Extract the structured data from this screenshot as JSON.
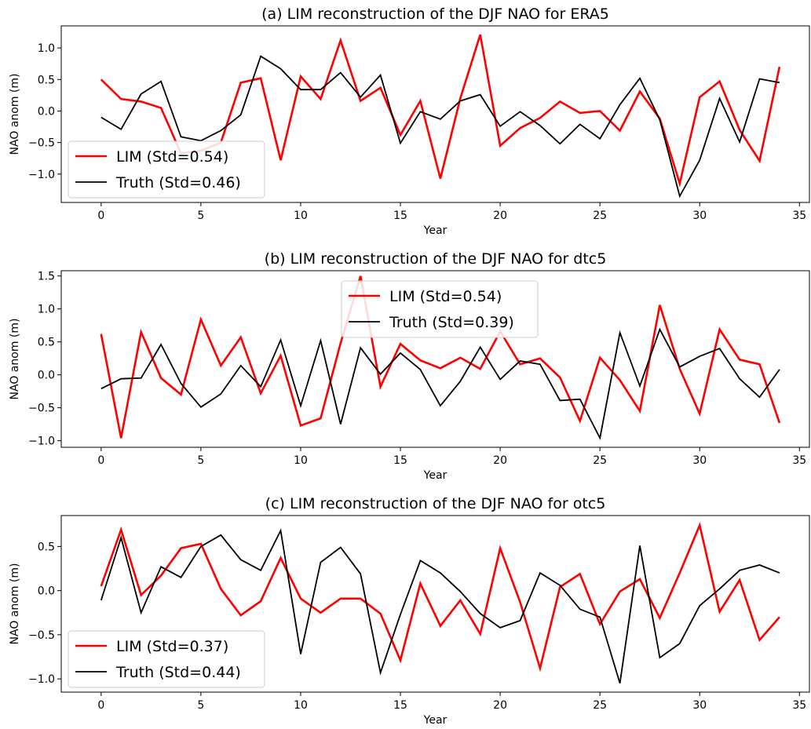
{
  "chart_data": [
    {
      "type": "line",
      "title": "(a) LIM reconstruction of the DJF NAO for ERA5",
      "xlabel": "Year",
      "ylabel": "NAO anom (m)",
      "xlim": [
        -2,
        35.5
      ],
      "ylim": [
        -1.45,
        1.35
      ],
      "xticks": [
        0,
        5,
        10,
        15,
        20,
        25,
        30,
        35
      ],
      "yticks": [
        -1.0,
        -0.5,
        0.0,
        0.5,
        1.0
      ],
      "ytick_labels": [
        "−1.0",
        "−0.5",
        "0.0",
        "0.5",
        "1.0"
      ],
      "legend_position": "lower-left",
      "x": [
        0,
        1,
        2,
        3,
        4,
        5,
        6,
        7,
        8,
        9,
        10,
        11,
        12,
        13,
        14,
        15,
        16,
        17,
        18,
        19,
        20,
        21,
        22,
        23,
        24,
        25,
        26,
        27,
        28,
        29,
        30,
        31,
        32,
        33,
        34
      ],
      "series": [
        {
          "name": "LIM (Std=0.54)",
          "color": "#ff0000",
          "width": 2.6,
          "values": [
            0.5,
            0.19,
            0.15,
            0.05,
            -0.67,
            -0.63,
            -0.5,
            0.45,
            0.52,
            -0.78,
            0.55,
            0.19,
            1.12,
            0.16,
            0.37,
            -0.38,
            0.16,
            -1.07,
            0.2,
            1.21,
            -0.55,
            -0.27,
            -0.11,
            0.15,
            -0.03,
            0.0,
            -0.31,
            0.31,
            -0.12,
            -1.15,
            0.22,
            0.47,
            -0.3,
            -0.79,
            0.7
          ]
        },
        {
          "name": "Truth (Std=0.46)",
          "color": "#000000",
          "width": 1.8,
          "values": [
            -0.1,
            -0.29,
            0.27,
            0.47,
            -0.41,
            -0.47,
            -0.31,
            -0.06,
            0.87,
            0.67,
            0.34,
            0.34,
            0.61,
            0.22,
            0.57,
            -0.51,
            -0.01,
            -0.13,
            0.16,
            0.26,
            -0.24,
            -0.01,
            -0.23,
            -0.52,
            -0.21,
            -0.44,
            0.1,
            0.52,
            -0.14,
            -1.35,
            -0.78,
            0.2,
            -0.49,
            0.51,
            0.45
          ]
        }
      ]
    },
    {
      "type": "line",
      "title": "(b) LIM reconstruction of the DJF NAO for dtc5",
      "xlabel": "Year",
      "ylabel": "NAO anom (m)",
      "xlim": [
        -2,
        35.5
      ],
      "ylim": [
        -1.1,
        1.58
      ],
      "xticks": [
        0,
        5,
        10,
        15,
        20,
        25,
        30,
        35
      ],
      "yticks": [
        -1.0,
        -0.5,
        0.0,
        0.5,
        1.0,
        1.5
      ],
      "ytick_labels": [
        "−1.0",
        "−0.5",
        "0.0",
        "0.5",
        "1.0",
        "1.5"
      ],
      "legend_position": "upper-center",
      "x": [
        0,
        1,
        2,
        3,
        4,
        5,
        6,
        7,
        8,
        9,
        10,
        11,
        12,
        13,
        14,
        15,
        16,
        17,
        18,
        19,
        20,
        21,
        22,
        23,
        24,
        25,
        26,
        27,
        28,
        29,
        30,
        31,
        32,
        33,
        34
      ],
      "series": [
        {
          "name": "LIM (Std=0.54)",
          "color": "#ff0000",
          "width": 2.6,
          "values": [
            0.62,
            -0.96,
            0.65,
            -0.05,
            -0.3,
            0.84,
            0.14,
            0.57,
            -0.28,
            0.29,
            -0.77,
            -0.66,
            0.48,
            1.5,
            -0.18,
            0.47,
            0.22,
            0.1,
            0.26,
            0.09,
            0.66,
            0.16,
            0.25,
            -0.04,
            -0.7,
            0.26,
            -0.08,
            -0.55,
            1.06,
            0.09,
            -0.59,
            0.69,
            0.23,
            0.16,
            -0.73
          ]
        },
        {
          "name": "Truth (Std=0.39)",
          "color": "#000000",
          "width": 1.8,
          "values": [
            -0.21,
            -0.06,
            -0.05,
            0.46,
            -0.13,
            -0.49,
            -0.29,
            0.14,
            -0.18,
            0.53,
            -0.47,
            0.52,
            -0.75,
            0.41,
            0.01,
            0.33,
            0.08,
            -0.47,
            -0.1,
            0.42,
            -0.07,
            0.21,
            0.16,
            -0.39,
            -0.37,
            -0.96,
            0.64,
            -0.17,
            0.69,
            0.12,
            0.28,
            0.4,
            -0.06,
            -0.34,
            0.08
          ]
        }
      ]
    },
    {
      "type": "line",
      "title": "(c) LIM reconstruction of the DJF NAO for otc5",
      "xlabel": "Year",
      "ylabel": "NAO anom (m)",
      "xlim": [
        -2,
        35.5
      ],
      "ylim": [
        -1.15,
        0.85
      ],
      "xticks": [
        0,
        5,
        10,
        15,
        20,
        25,
        30,
        35
      ],
      "yticks": [
        -1.0,
        -0.5,
        0.0,
        0.5
      ],
      "ytick_labels": [
        "−1.0",
        "−0.5",
        "0.0",
        "0.5"
      ],
      "legend_position": "lower-left",
      "x": [
        0,
        1,
        2,
        3,
        4,
        5,
        6,
        7,
        8,
        9,
        10,
        11,
        12,
        13,
        14,
        15,
        16,
        17,
        18,
        19,
        20,
        21,
        22,
        23,
        24,
        25,
        26,
        27,
        28,
        29,
        30,
        31,
        32,
        33,
        34
      ],
      "series": [
        {
          "name": "LIM (Std=0.37)",
          "color": "#ff0000",
          "width": 2.6,
          "values": [
            0.05,
            0.69,
            -0.05,
            0.17,
            0.48,
            0.53,
            0.02,
            -0.28,
            -0.12,
            0.37,
            -0.09,
            -0.25,
            -0.09,
            -0.09,
            -0.26,
            -0.79,
            0.08,
            -0.4,
            -0.11,
            -0.49,
            0.48,
            -0.13,
            -0.88,
            0.04,
            0.19,
            -0.38,
            -0.01,
            0.13,
            -0.31,
            0.2,
            0.74,
            -0.24,
            0.12,
            -0.56,
            -0.3
          ]
        },
        {
          "name": "Truth (Std=0.44)",
          "color": "#000000",
          "width": 1.8,
          "values": [
            -0.11,
            0.6,
            -0.25,
            0.27,
            0.15,
            0.5,
            0.63,
            0.35,
            0.23,
            0.68,
            -0.72,
            0.32,
            0.49,
            0.19,
            -0.93,
            -0.27,
            0.34,
            0.2,
            -0.01,
            -0.26,
            -0.42,
            -0.34,
            0.2,
            0.06,
            -0.21,
            -0.3,
            -1.05,
            0.51,
            -0.76,
            -0.6,
            -0.17,
            0.02,
            0.23,
            0.29,
            0.2
          ]
        }
      ]
    }
  ]
}
